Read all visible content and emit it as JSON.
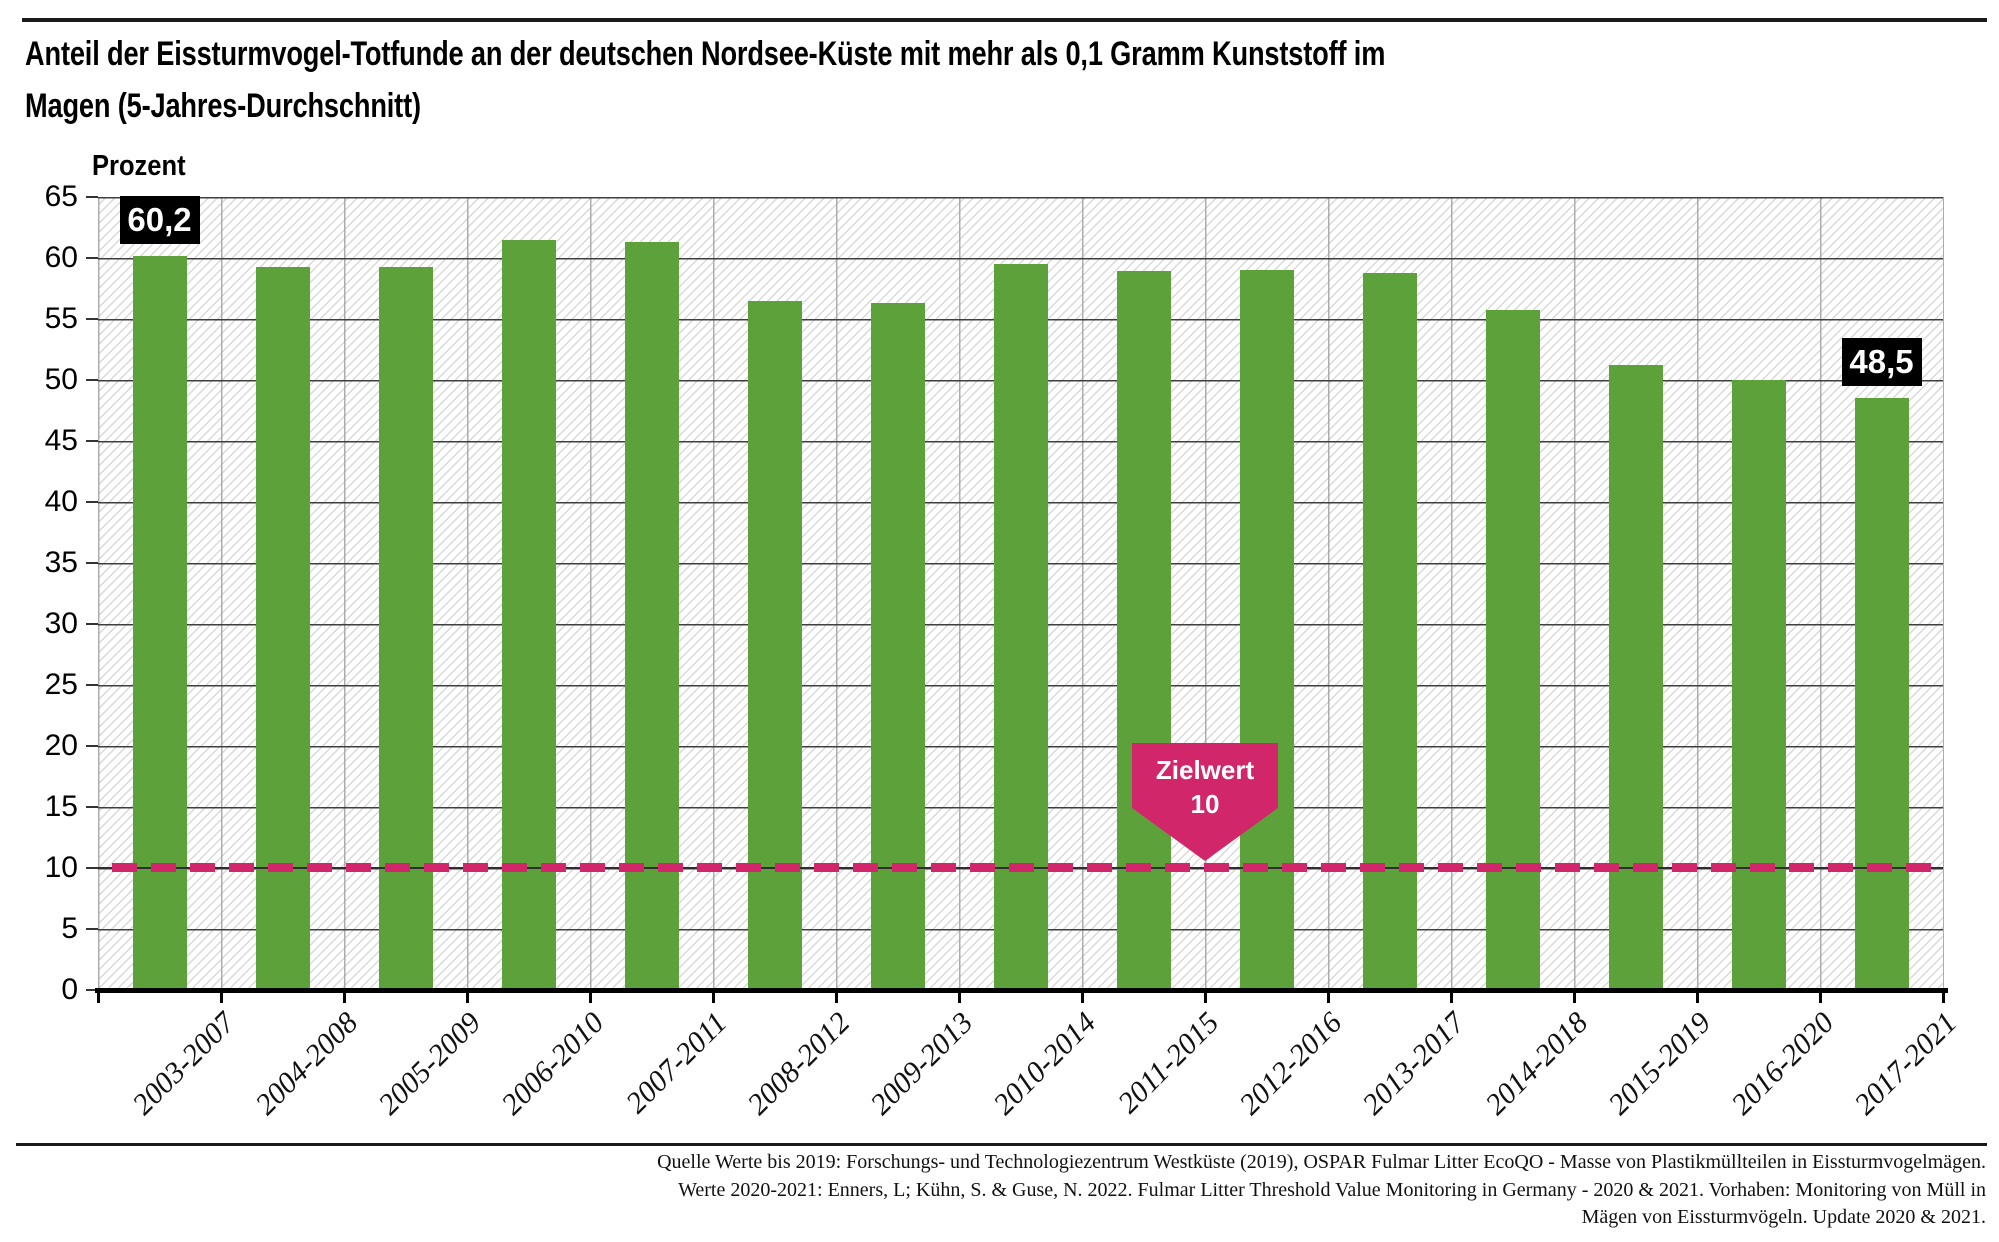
{
  "header": {
    "title_line1": "Anteil der Eissturmvogel-Totfunde an der deutschen Nordsee-Küste mit mehr als 0,1 Gramm Kunststoff im",
    "title_line2": "Magen (5-Jahres-Durchschnitt)"
  },
  "y_axis": {
    "title": "Prozent",
    "ticks": [
      65,
      60,
      55,
      50,
      45,
      40,
      35,
      30,
      25,
      20,
      15,
      10,
      5,
      0
    ]
  },
  "chart_data": {
    "type": "bar",
    "title": "Anteil der Eissturmvogel-Totfunde an der deutschen Nordsee-Küste mit mehr als 0,1 Gramm Kunststoff im Magen (5-Jahres-Durchschnitt)",
    "ylabel": "Prozent",
    "ylim": [
      0,
      65
    ],
    "ytick_step": 5,
    "grid": "horizontal and vertical gridlines on hatched background",
    "legend_position": "none",
    "categories": [
      "2003-2007",
      "2004-2008",
      "2005-2009",
      "2006-2010",
      "2007-2011",
      "2008-2012",
      "2009-2013",
      "2010-2014",
      "2011-2015",
      "2012-2016",
      "2013-2017",
      "2014-2018",
      "2015-2019",
      "2016-2020",
      "2017-2021"
    ],
    "values": [
      60.2,
      59.3,
      59.3,
      61.5,
      61.3,
      56.5,
      56.3,
      59.5,
      58.9,
      59.0,
      58.8,
      55.7,
      51.2,
      50.0,
      48.5
    ],
    "bar_value_labels": [
      {
        "category_index": 0,
        "text": "60,2"
      },
      {
        "category_index": 14,
        "text": "48,5"
      }
    ],
    "target_line": {
      "value": 10,
      "label": "Zielwert",
      "label_value": "10"
    },
    "colors": {
      "bar": "#5CA139",
      "target": "#D2266A",
      "value_badge_bg": "#000000",
      "value_badge_text": "#FFFFFF"
    }
  },
  "source": {
    "lines": [
      "Quelle Werte bis 2019: Forschungs- und Technologiezentrum Westküste (2019), OSPAR Fulmar Litter EcoQO - Masse von Plastikmüllteilen in Eissturmvogelmägen.",
      "Werte 2020-2021: Enners, L; Kühn, S. & Guse, N. 2022. Fulmar Litter Threshold Value Monitoring in Germany - 2020 & 2021. Vorhaben: Monitoring von Müll in",
      "Mägen von Eissturmvögeln. Update 2020 & 2021."
    ]
  }
}
